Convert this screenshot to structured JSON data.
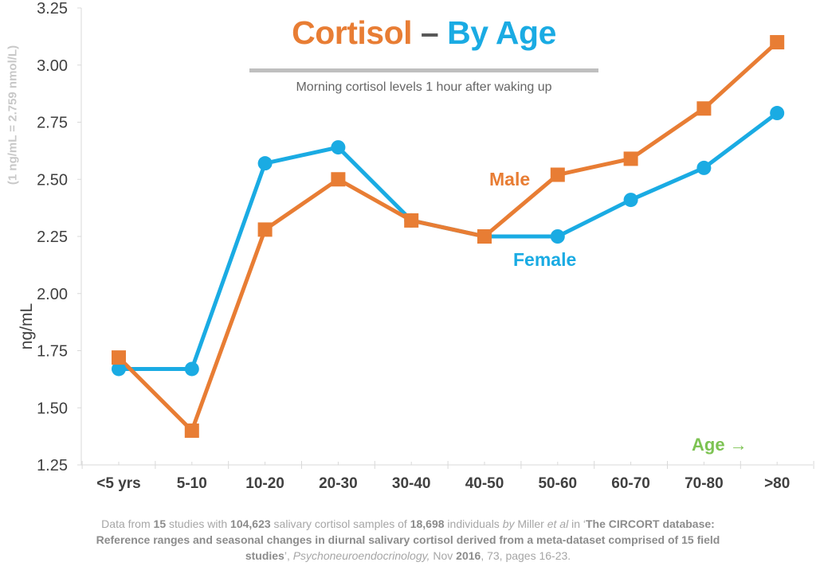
{
  "chart_data": {
    "type": "line",
    "title": "Cortisol – By Age",
    "title_parts": {
      "left": "Cortisol",
      "dash": "–",
      "right": "By Age"
    },
    "subtitle": "Morning cortisol levels 1 hour after waking up",
    "xlabel": "Age →",
    "ylabel": "ng/mL",
    "ylabel_note": "(1 ng/mL = 2.759 nmol/L)",
    "categories": [
      "<5 yrs",
      "5-10",
      "10-20",
      "20-30",
      "30-40",
      "40-50",
      "50-60",
      "60-70",
      "70-80",
      ">80"
    ],
    "ylim": [
      1.25,
      3.25
    ],
    "yticks": [
      "1.25",
      "1.50",
      "1.75",
      "2.00",
      "2.25",
      "2.50",
      "2.75",
      "3.00",
      "3.25"
    ],
    "grid": false,
    "series": [
      {
        "name": "Male",
        "color": "#e87d34",
        "marker": "square",
        "values": [
          1.72,
          1.4,
          2.28,
          2.5,
          2.32,
          2.25,
          2.52,
          2.59,
          2.81,
          3.1
        ]
      },
      {
        "name": "Female",
        "color": "#1aabe3",
        "marker": "circle",
        "values": [
          1.67,
          1.67,
          2.57,
          2.64,
          2.32,
          2.25,
          2.25,
          2.41,
          2.55,
          2.79
        ]
      }
    ]
  },
  "footnote": {
    "line1": [
      "Data from ",
      "15",
      " studies with ",
      "104,623",
      " salivary cortisol samples of ",
      "18,698",
      " individuals ",
      "by",
      " Miller ",
      "et al",
      " in ‘",
      "The CIRCORT database:"
    ],
    "line2": "Reference ranges and seasonal changes in diurnal salivary cortisol derived from a meta-dataset comprised of 15 field",
    "line3": [
      "studies",
      "’, ",
      "Psychoneuroendocrinology,",
      " Nov ",
      "2016",
      ", 73, pages 16-23."
    ]
  }
}
